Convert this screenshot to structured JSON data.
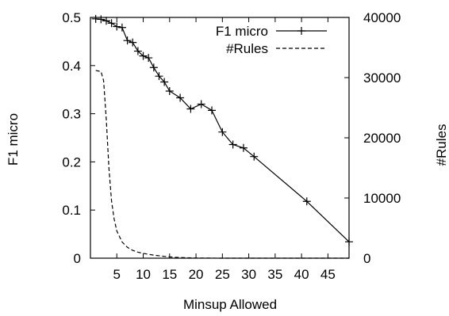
{
  "chart_data": {
    "type": "line",
    "xlabel": "Minsup Allowed",
    "ylabel": "F1 micro",
    "y2label": "#Rules",
    "xlim": [
      0,
      49
    ],
    "ylim": [
      0,
      0.5
    ],
    "y2lim": [
      0,
      40000
    ],
    "x_ticks": [
      5,
      10,
      15,
      20,
      25,
      30,
      35,
      40,
      45
    ],
    "y_ticks": [
      0,
      0.1,
      0.2,
      0.3,
      0.4,
      0.5
    ],
    "y2_ticks": [
      0,
      10000,
      20000,
      30000,
      40000
    ],
    "grid": false,
    "legend": "top-right",
    "series": [
      {
        "name": "F1 micro",
        "axis": "left",
        "style": "solid",
        "marker": "plus",
        "color": "#000000",
        "x": [
          1,
          2,
          3,
          4,
          5,
          6,
          7,
          8,
          9,
          10,
          11,
          12,
          13,
          14,
          15,
          17,
          19,
          21,
          23,
          25,
          27,
          29,
          31,
          41,
          49
        ],
        "y": [
          0.497,
          0.496,
          0.493,
          0.488,
          0.481,
          0.479,
          0.452,
          0.448,
          0.43,
          0.42,
          0.416,
          0.396,
          0.378,
          0.366,
          0.347,
          0.333,
          0.31,
          0.32,
          0.307,
          0.262,
          0.236,
          0.229,
          0.211,
          0.118,
          0.034
        ]
      },
      {
        "name": "#Rules",
        "axis": "right",
        "style": "dashed",
        "marker": "none",
        "color": "#000000",
        "x": [
          1,
          2,
          2.5,
          3,
          3.5,
          4,
          4.5,
          5,
          6,
          7,
          8,
          9,
          10,
          12,
          14,
          16,
          18,
          20,
          25,
          30,
          40,
          49
        ],
        "y": [
          31200,
          31000,
          29500,
          23000,
          15000,
          9500,
          6500,
          4500,
          2700,
          1800,
          1300,
          1000,
          800,
          500,
          300,
          150,
          80,
          30,
          0,
          0,
          0,
          0
        ]
      }
    ]
  }
}
